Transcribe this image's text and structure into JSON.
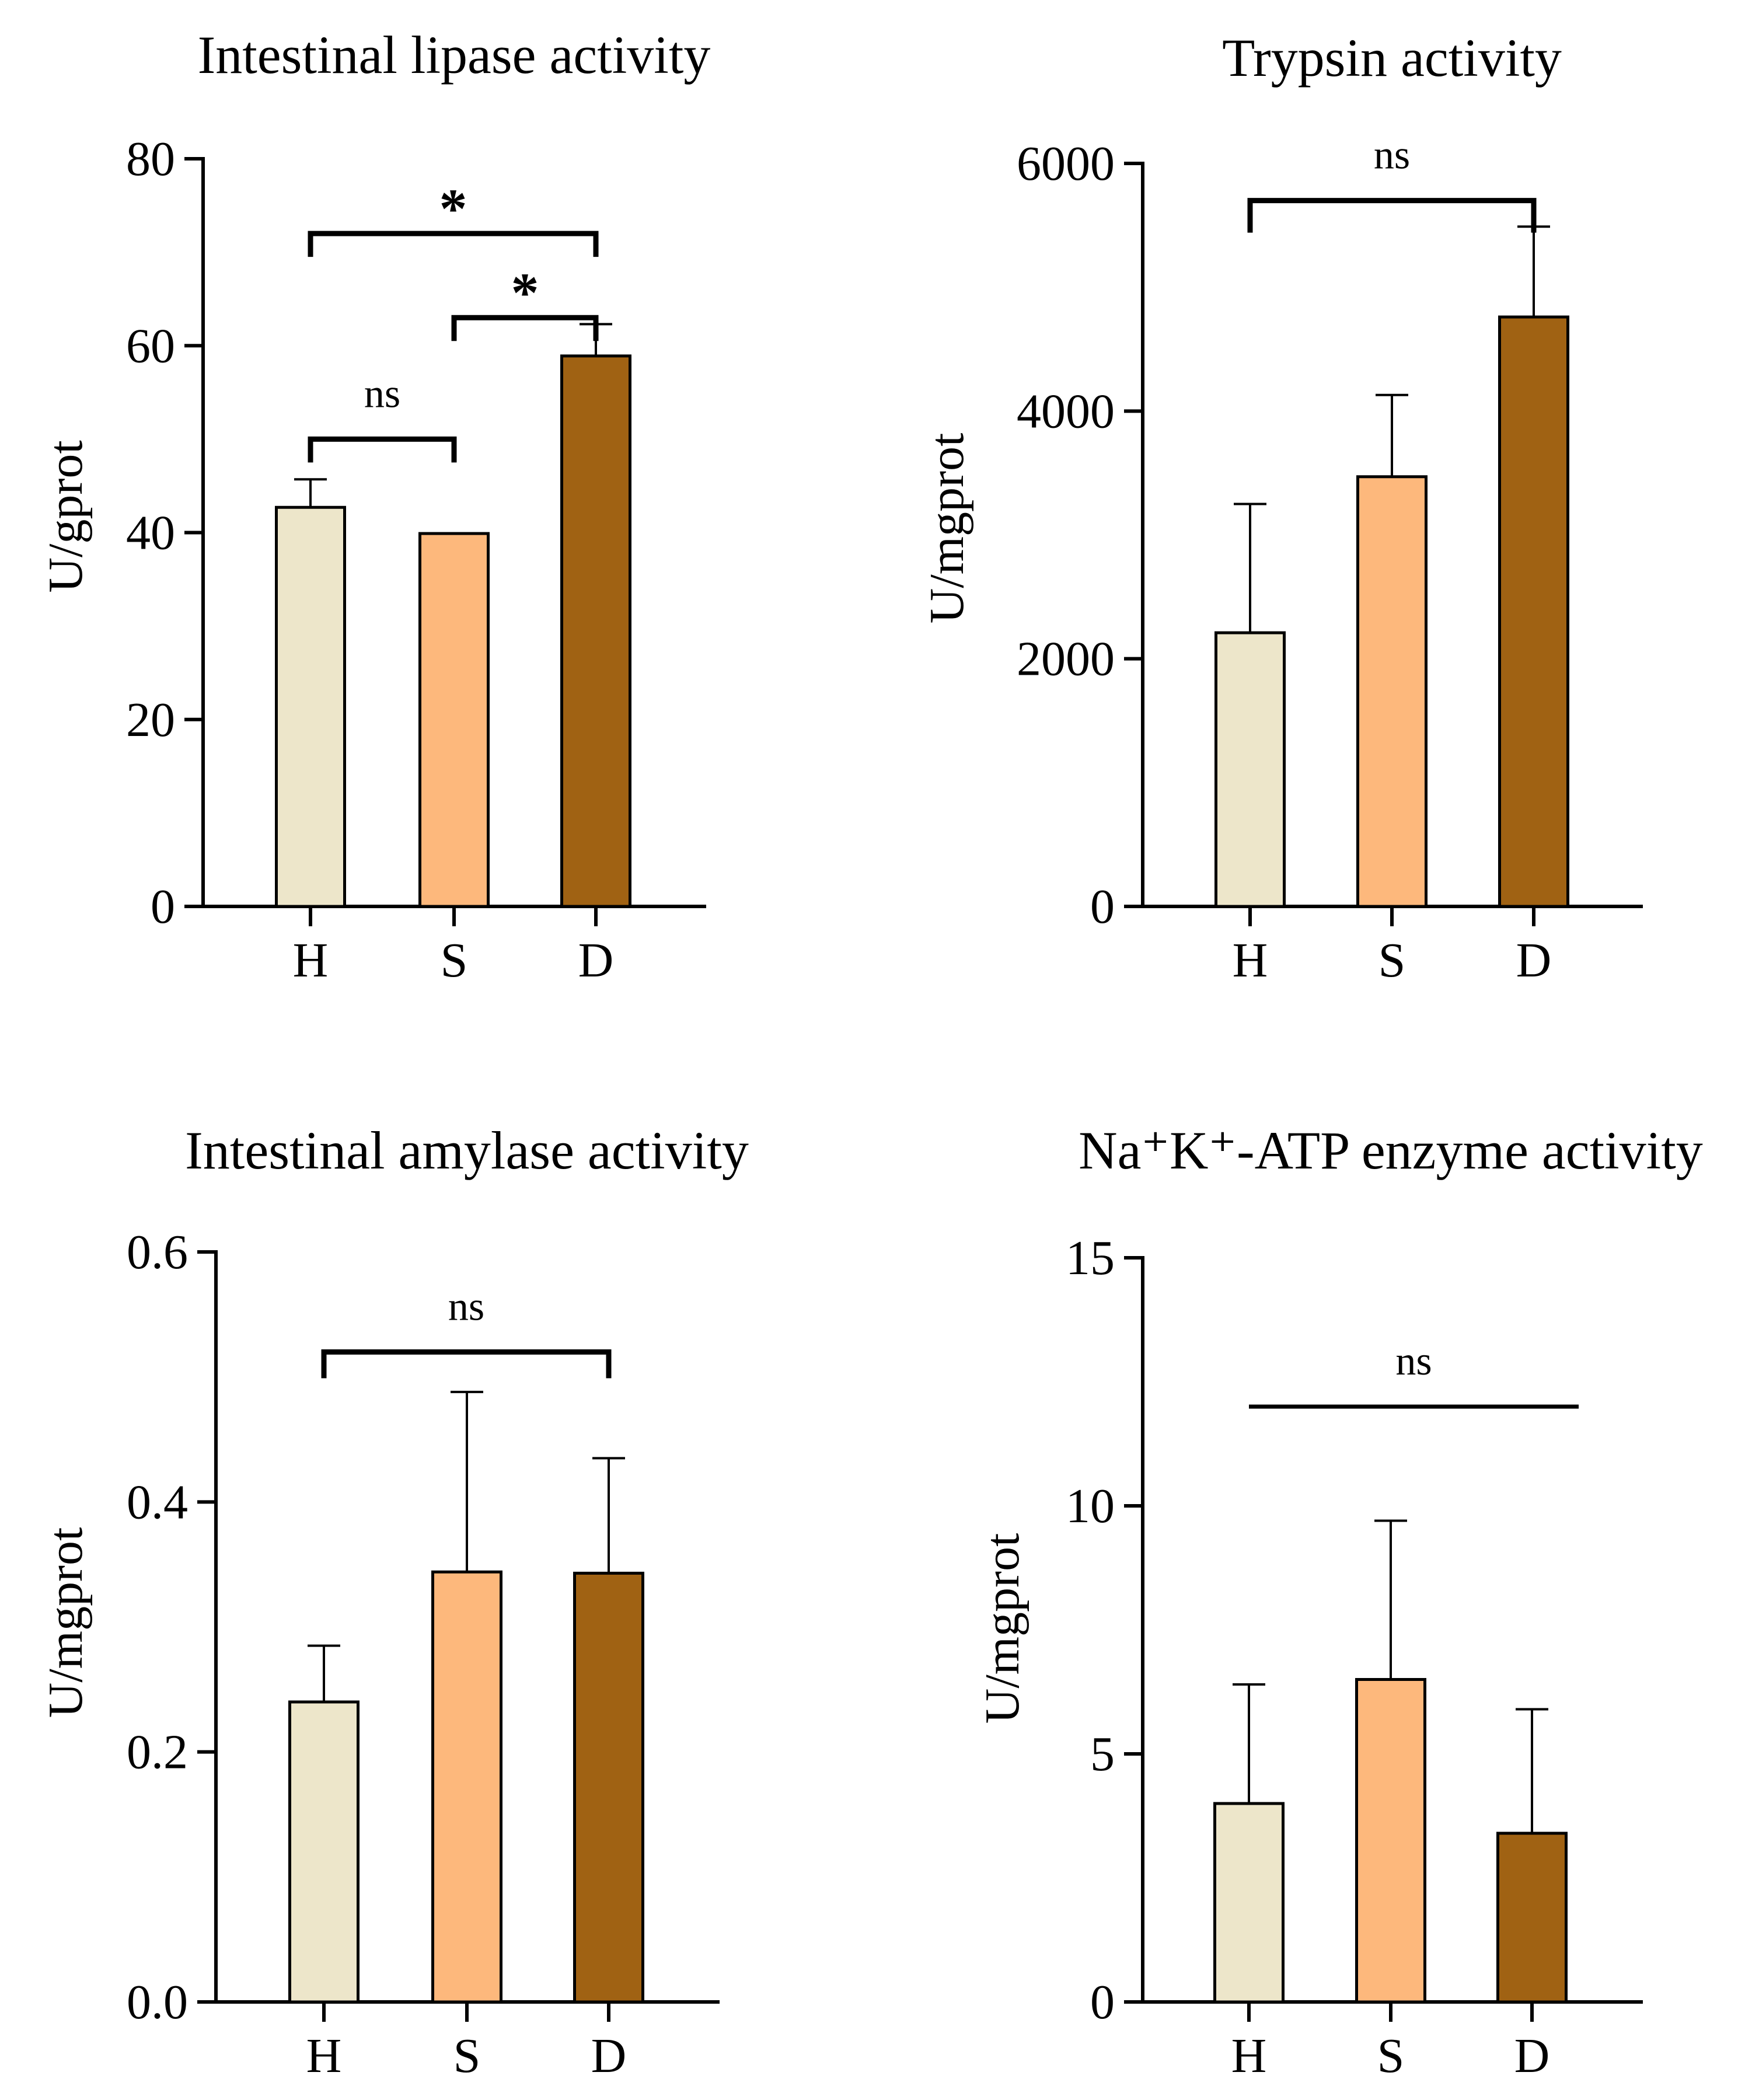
{
  "chart_data": [
    {
      "type": "bar",
      "title": "Intestinal lipase activity",
      "xlabel": "",
      "ylabel": "U/gprot",
      "categories": [
        "H",
        "S",
        "D"
      ],
      "values": [
        42.7,
        39.9,
        58.9
      ],
      "errors": [
        3.0,
        0,
        3.4
      ],
      "ylim": [
        0,
        80
      ],
      "yticks": [
        0,
        20,
        40,
        60,
        80
      ],
      "tick_labels": [
        "0",
        "20",
        "40",
        "60",
        "80"
      ],
      "colors": [
        "#EDE6CA",
        "#FDB87C",
        "#A06213"
      ],
      "significance": [
        {
          "from": "H",
          "to": "D",
          "label": "*",
          "y": 72
        },
        {
          "from": "S",
          "to": "D",
          "label": "*",
          "y": 63
        },
        {
          "from": "H",
          "to": "S",
          "label": "ns",
          "y": 50
        }
      ]
    },
    {
      "type": "bar",
      "title": "Trypsin activity",
      "xlabel": "",
      "ylabel": "U/mgprot",
      "categories": [
        "H",
        "S",
        "D"
      ],
      "values": [
        2210,
        3470,
        4760
      ],
      "errors": [
        1040,
        660,
        730
      ],
      "ylim": [
        0,
        6000
      ],
      "yticks": [
        0,
        2000,
        4000,
        6000
      ],
      "tick_labels": [
        "0",
        "2000",
        "4000",
        "6000"
      ],
      "colors": [
        "#EDE6CA",
        "#FDB87C",
        "#A06213"
      ],
      "significance": [
        {
          "from": "H",
          "to": "D",
          "label": "ns",
          "y": 5700
        }
      ]
    },
    {
      "type": "bar",
      "title": "Intestinal amylase activity",
      "xlabel": "",
      "ylabel": "U/mgprot",
      "categories": [
        "H",
        "S",
        "D"
      ],
      "values": [
        0.24,
        0.344,
        0.343
      ],
      "errors": [
        0.045,
        0.144,
        0.092
      ],
      "ylim": [
        0,
        0.6
      ],
      "yticks": [
        0,
        0.2,
        0.4,
        0.6
      ],
      "tick_labels": [
        "0.0",
        "0.2",
        "0.4",
        "0.6"
      ],
      "colors": [
        "#EDE6CA",
        "#FDB87C",
        "#A06213"
      ],
      "significance": [
        {
          "from": "H",
          "to": "D",
          "label": "ns",
          "y": 0.52
        }
      ]
    },
    {
      "type": "bar",
      "title": "Na⁺K⁺-ATP enzyme activity",
      "xlabel": "",
      "ylabel": "U/mgprot",
      "categories": [
        "H",
        "S",
        "D"
      ],
      "values": [
        4.0,
        6.5,
        3.4
      ],
      "errors": [
        2.4,
        3.2,
        2.5
      ],
      "ylim": [
        0,
        15
      ],
      "yticks": [
        0,
        5,
        10,
        15
      ],
      "tick_labels": [
        "0",
        "5",
        "10",
        "15"
      ],
      "colors": [
        "#EDE6CA",
        "#FDB87C",
        "#A06213"
      ],
      "significance": [
        {
          "from": "H",
          "to": "D",
          "label": "ns",
          "y": 12,
          "style": "line"
        }
      ]
    }
  ]
}
